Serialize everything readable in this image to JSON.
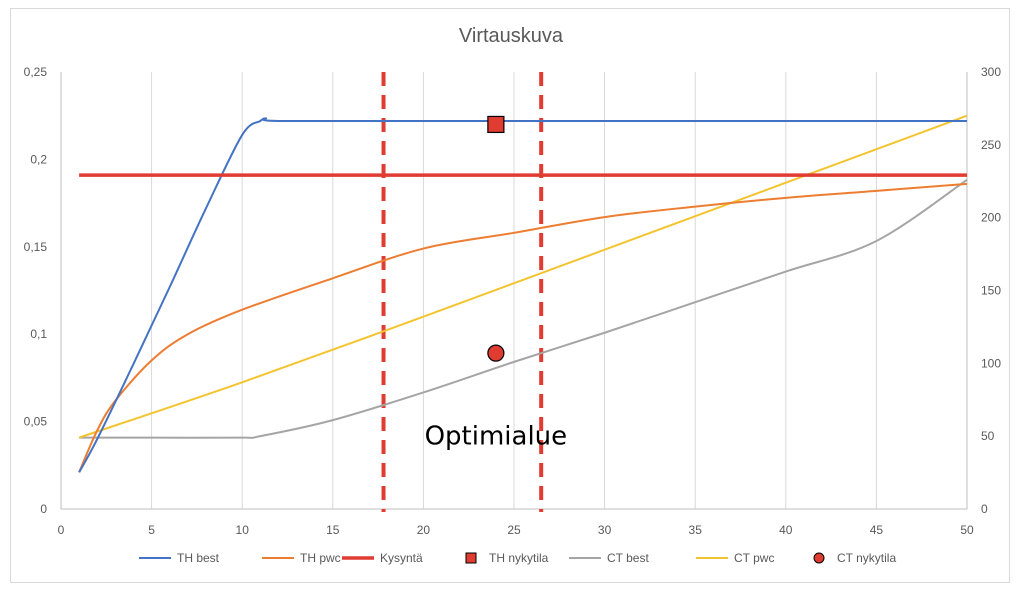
{
  "chart_data": {
    "type": "line",
    "title": "Virtauskuva",
    "x_ticks": [
      "0",
      "5",
      "10",
      "15",
      "20",
      "25",
      "30",
      "35",
      "40",
      "45",
      "50"
    ],
    "y_left_ticks": [
      "0",
      "0,05",
      "0,1",
      "0,15",
      "0,2",
      "0,25"
    ],
    "y_right_ticks": [
      "0",
      "50",
      "100",
      "150",
      "200",
      "250",
      "300"
    ],
    "xlim": [
      0,
      50
    ],
    "ylim_left": [
      0,
      0.25
    ],
    "ylim_right": [
      0,
      300
    ],
    "grid": "vertical",
    "legend_position": "bottom",
    "series": [
      {
        "name": "TH best",
        "axis": "left",
        "style": "line",
        "color": "#4472C4",
        "points": [
          [
            1,
            0.021
          ],
          [
            2,
            0.04
          ],
          [
            4,
            0.083
          ],
          [
            6,
            0.127
          ],
          [
            8,
            0.172
          ],
          [
            10,
            0.214
          ],
          [
            11,
            0.222
          ],
          [
            11.3,
            0.2235
          ],
          [
            12,
            0.222
          ],
          [
            20,
            0.222
          ],
          [
            30,
            0.222
          ],
          [
            40,
            0.222
          ],
          [
            50,
            0.222
          ]
        ]
      },
      {
        "name": "TH pwc",
        "axis": "left",
        "style": "line",
        "color": "#ED7D31",
        "points": [
          [
            1,
            0.021
          ],
          [
            2,
            0.045
          ],
          [
            3,
            0.062
          ],
          [
            5,
            0.085
          ],
          [
            7,
            0.1
          ],
          [
            10,
            0.114
          ],
          [
            15,
            0.132
          ],
          [
            20,
            0.149
          ],
          [
            25,
            0.158
          ],
          [
            30,
            0.167
          ],
          [
            35,
            0.173
          ],
          [
            40,
            0.178
          ],
          [
            45,
            0.182
          ],
          [
            50,
            0.186
          ]
        ]
      },
      {
        "name": "Kysyntä",
        "axis": "left",
        "style": "thick-line",
        "color": "#E03C31",
        "points": [
          [
            1,
            0.191
          ],
          [
            50,
            0.191
          ]
        ]
      },
      {
        "name": "TH nykytila",
        "axis": "left",
        "style": "square-marker",
        "color": "#E03C31",
        "points": [
          [
            24,
            0.22
          ]
        ]
      },
      {
        "name": "CT best",
        "axis": "right",
        "style": "line",
        "color": "#A5A5A5",
        "points": [
          [
            1,
            49
          ],
          [
            5,
            49
          ],
          [
            10,
            49
          ],
          [
            11,
            50
          ],
          [
            15,
            61
          ],
          [
            20,
            80
          ],
          [
            25,
            101
          ],
          [
            30,
            121
          ],
          [
            35,
            142
          ],
          [
            40,
            163
          ],
          [
            45,
            184
          ],
          [
            50,
            226
          ]
        ]
      },
      {
        "name": "CT pwc",
        "axis": "right",
        "style": "line",
        "color": "#F4C430",
        "points": [
          [
            1,
            49
          ],
          [
            10,
            87
          ],
          [
            20,
            132
          ],
          [
            30,
            178
          ],
          [
            40,
            224
          ],
          [
            50,
            270
          ]
        ]
      },
      {
        "name": "CT nykytila",
        "axis": "right",
        "style": "circle-marker",
        "color": "#E03C31",
        "points": [
          [
            24,
            107
          ]
        ]
      }
    ],
    "vlines": [
      {
        "x": 17.8,
        "color": "#E03C31",
        "style": "dashed"
      },
      {
        "x": 26.5,
        "color": "#E03C31",
        "style": "dashed"
      }
    ],
    "annotation": {
      "text": "Optimialue",
      "x": 24,
      "y_left": 0.042
    }
  }
}
